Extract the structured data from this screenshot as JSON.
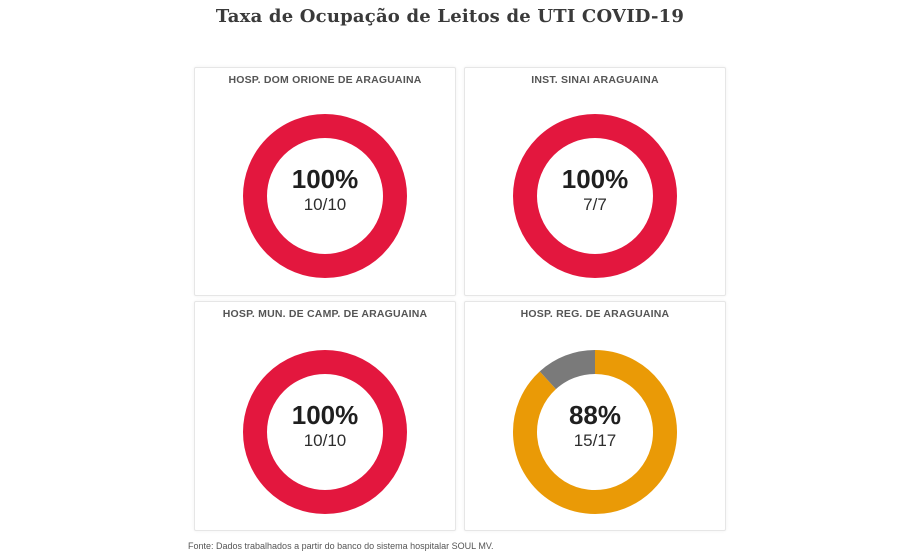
{
  "page": {
    "title": "Taxa de Ocupação de Leitos de UTI COVID-19",
    "footer": "Fonte: Dados trabalhados a partir do banco do sistema hospitalar SOUL MV."
  },
  "colors": {
    "full": "#e3173e",
    "partial": "#ea9a06",
    "free": "#7a7a7a"
  },
  "chart_data": [
    {
      "type": "pie",
      "title": "HOSP. DOM ORIONE DE ARAGUAINA",
      "occupied": 10,
      "total": 10,
      "percent_label": "100%",
      "fraction_label": "10/10",
      "color": "#e3173e"
    },
    {
      "type": "pie",
      "title": "INST. SINAI ARAGUAINA",
      "occupied": 7,
      "total": 7,
      "percent_label": "100%",
      "fraction_label": "7/7",
      "color": "#e3173e"
    },
    {
      "type": "pie",
      "title": "HOSP. MUN. DE CAMP. DE ARAGUAINA",
      "occupied": 10,
      "total": 10,
      "percent_label": "100%",
      "fraction_label": "10/10",
      "color": "#e3173e"
    },
    {
      "type": "pie",
      "title": "HOSP. REG. DE ARAGUAINA",
      "occupied": 15,
      "total": 17,
      "percent_label": "88%",
      "fraction_label": "15/17",
      "color": "#ea9a06"
    }
  ]
}
